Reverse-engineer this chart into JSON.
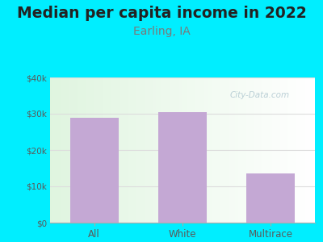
{
  "title": "Median per capita income in 2022",
  "subtitle": "Earling, IA",
  "categories": [
    "All",
    "White",
    "Multirace"
  ],
  "values": [
    29000,
    30500,
    13500
  ],
  "bar_color": "#c4a8d4",
  "title_fontsize": 13.5,
  "title_color": "#222222",
  "subtitle_fontsize": 10,
  "subtitle_color": "#7a7a7a",
  "tick_label_color": "#5a5a5a",
  "outer_bg_color": "#00eeff",
  "ylim": [
    0,
    40000
  ],
  "yticks": [
    0,
    10000,
    20000,
    30000,
    40000
  ],
  "ytick_labels": [
    "$0",
    "$10k",
    "$20k",
    "$30k",
    "$40k"
  ],
  "watermark": "City-Data.com",
  "grid_color": "#dddddd"
}
